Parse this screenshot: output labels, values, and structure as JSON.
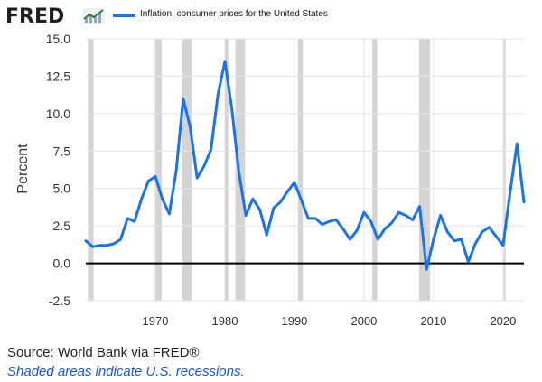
{
  "brand": {
    "logo_text": "FRED",
    "logo_icon": "fred-trend-chart-icon"
  },
  "legend": {
    "label": "Inflation, consumer prices for the United States",
    "color": "#1a73e8"
  },
  "footer": {
    "source": "Source: World Bank via FRED®",
    "note": "Shaded areas indicate U.S. recessions."
  },
  "chart_data": {
    "type": "line",
    "title": "",
    "xlabel": "",
    "ylabel": "Percent",
    "xlim": [
      1960,
      2023
    ],
    "ylim": [
      -2.5,
      15
    ],
    "yticks": [
      -2.5,
      0,
      2.5,
      5,
      7.5,
      10,
      12.5,
      15
    ],
    "ytick_labels": [
      "-2.5",
      "0.0",
      "2.5",
      "5.0",
      "7.5",
      "10.0",
      "12.5",
      "15.0"
    ],
    "xticks": [
      1970,
      1980,
      1990,
      2000,
      2010,
      2020
    ],
    "grid": "horizontal and vertical",
    "line_color": "#1a73e8",
    "zero_line": true,
    "recessions": [
      [
        1960.3,
        1961.1
      ],
      [
        1969.9,
        1970.9
      ],
      [
        1973.9,
        1975.2
      ],
      [
        1980.0,
        1980.5
      ],
      [
        1981.5,
        1982.9
      ],
      [
        1990.5,
        1991.2
      ],
      [
        2001.2,
        2001.9
      ],
      [
        2007.9,
        2009.5
      ],
      [
        2020.1,
        2020.3
      ]
    ],
    "series": [
      {
        "x": [
          1960,
          1961,
          1962,
          1963,
          1964,
          1965,
          1966,
          1967,
          1968,
          1969,
          1970,
          1971,
          1972,
          1973,
          1974,
          1975,
          1976,
          1977,
          1978,
          1979,
          1980,
          1981,
          1982,
          1983,
          1984,
          1985,
          1986,
          1987,
          1988,
          1989,
          1990,
          1991,
          1992,
          1993,
          1994,
          1995,
          1996,
          1997,
          1998,
          1999,
          2000,
          2001,
          2002,
          2003,
          2004,
          2005,
          2006,
          2007,
          2008,
          2009,
          2010,
          2011,
          2012,
          2013,
          2014,
          2015,
          2016,
          2017,
          2018,
          2019,
          2020,
          2021,
          2022,
          2023
        ],
        "values": [
          1.5,
          1.1,
          1.2,
          1.2,
          1.3,
          1.6,
          3.0,
          2.8,
          4.3,
          5.5,
          5.8,
          4.3,
          3.3,
          6.2,
          11.0,
          9.1,
          5.7,
          6.5,
          7.6,
          11.3,
          13.5,
          10.3,
          6.1,
          3.2,
          4.3,
          3.6,
          1.9,
          3.7,
          4.1,
          4.8,
          5.4,
          4.2,
          3.0,
          3.0,
          2.6,
          2.8,
          2.9,
          2.3,
          1.6,
          2.2,
          3.4,
          2.8,
          1.6,
          2.3,
          2.7,
          3.4,
          3.2,
          2.9,
          3.8,
          -0.4,
          1.6,
          3.2,
          2.1,
          1.5,
          1.6,
          0.1,
          1.3,
          2.1,
          2.4,
          1.8,
          1.2,
          4.7,
          8.0,
          4.1
        ]
      }
    ]
  }
}
